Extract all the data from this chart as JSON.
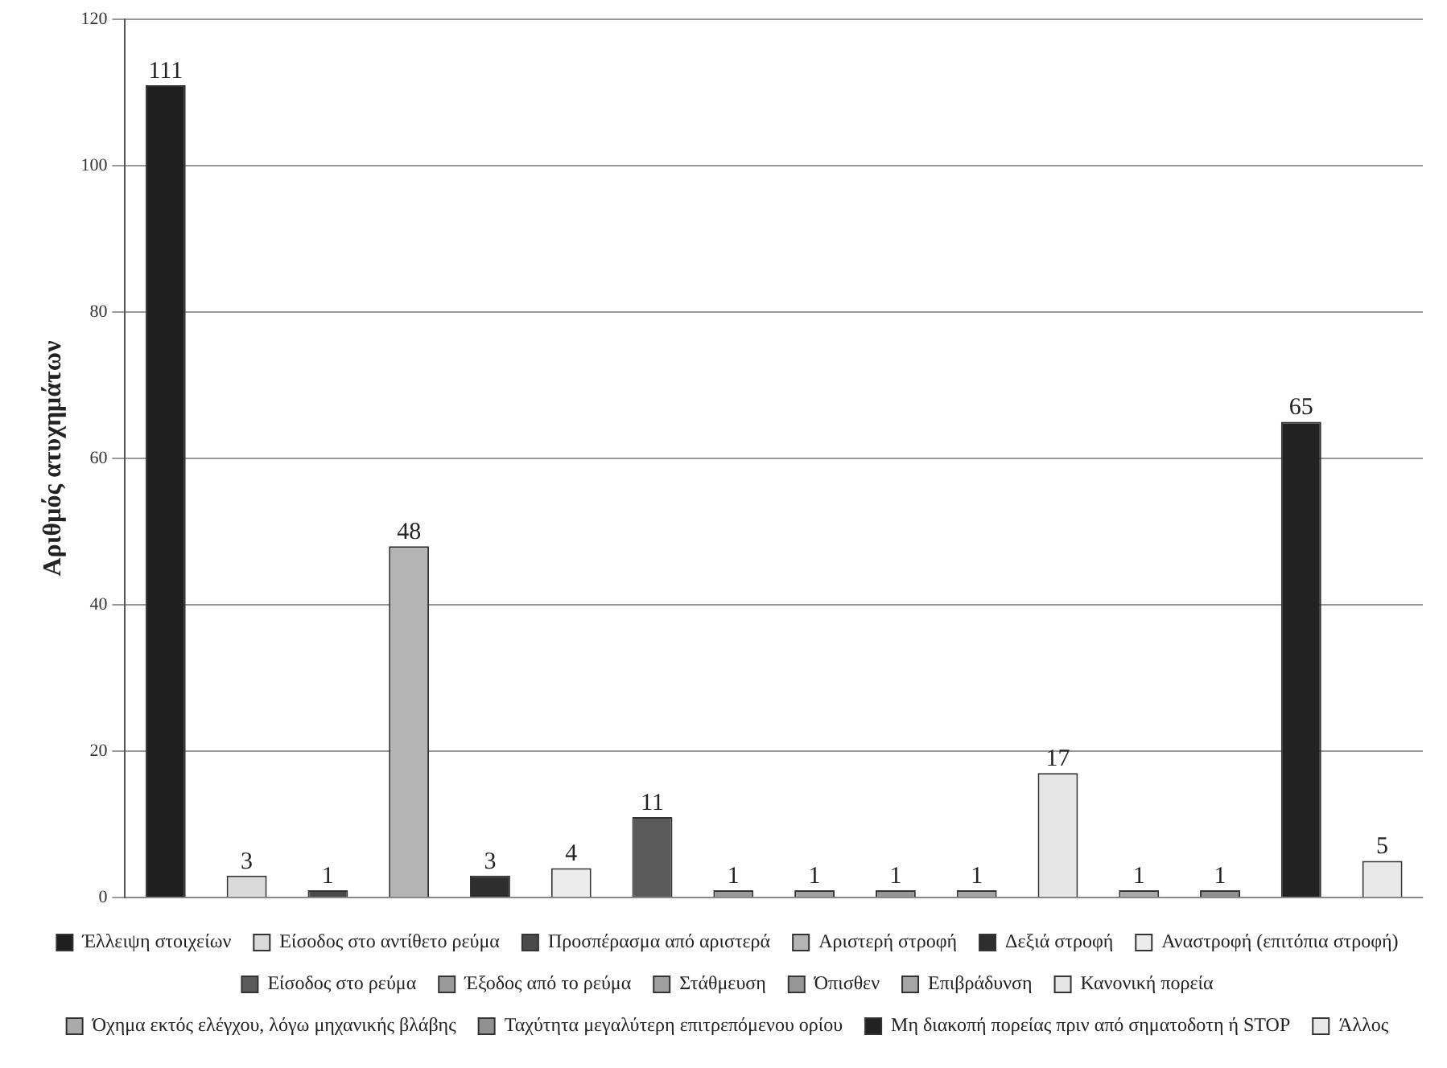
{
  "chart_data": {
    "type": "bar",
    "ylabel": "Αριθμός ατυχημάτων",
    "categories": [
      null,
      null,
      null,
      null,
      null,
      null,
      null,
      null,
      null,
      null,
      null,
      null,
      null,
      null,
      null,
      null
    ],
    "series": [
      {
        "name": "Έλλειψη στοιχείων",
        "color": "#1e1e1e",
        "values": [
          111,
          null,
          null,
          null,
          null,
          null,
          null,
          null,
          null,
          null,
          null,
          null,
          null,
          null,
          null,
          null
        ]
      },
      {
        "name": "Είσοδος στο αντίθετο ρεύμα",
        "color": "#dadada",
        "values": [
          null,
          3,
          null,
          null,
          null,
          null,
          null,
          null,
          null,
          null,
          null,
          null,
          null,
          null,
          null,
          null
        ]
      },
      {
        "name": "Προσπέρασμα από αριστερά",
        "color": "#4a4a4a",
        "values": [
          null,
          null,
          1,
          null,
          null,
          null,
          null,
          null,
          null,
          null,
          null,
          null,
          null,
          null,
          null,
          null
        ]
      },
      {
        "name": "Αριστερή στροφή",
        "color": "#b4b4b4",
        "values": [
          null,
          null,
          null,
          48,
          null,
          null,
          null,
          null,
          null,
          null,
          null,
          null,
          null,
          null,
          null,
          null
        ]
      },
      {
        "name": "Δεξιά στροφή",
        "color": "#2e2e2e",
        "values": [
          null,
          null,
          null,
          null,
          3,
          null,
          null,
          null,
          null,
          null,
          null,
          null,
          null,
          null,
          null,
          null
        ]
      },
      {
        "name": "Αναστροφή (επιτόπια στροφή)",
        "color": "#ececec",
        "values": [
          null,
          null,
          null,
          null,
          null,
          4,
          null,
          null,
          null,
          null,
          null,
          null,
          null,
          null,
          null,
          null
        ]
      },
      {
        "name": "Είσοδος στο ρεύμα",
        "color": "#5a5a5a",
        "values": [
          null,
          null,
          null,
          null,
          null,
          null,
          11,
          null,
          null,
          null,
          null,
          null,
          null,
          null,
          null,
          null
        ]
      },
      {
        "name": "Έξοδος από το ρεύμα",
        "color": "#9a9a9a",
        "values": [
          null,
          null,
          null,
          null,
          null,
          null,
          null,
          1,
          null,
          null,
          null,
          null,
          null,
          null,
          null,
          null
        ]
      },
      {
        "name": "Στάθμευση",
        "color": "#a0a0a0",
        "values": [
          null,
          null,
          null,
          null,
          null,
          null,
          null,
          null,
          1,
          null,
          null,
          null,
          null,
          null,
          null,
          null
        ]
      },
      {
        "name": "Όπισθεν",
        "color": "#969696",
        "values": [
          null,
          null,
          null,
          null,
          null,
          null,
          null,
          null,
          null,
          1,
          null,
          null,
          null,
          null,
          null,
          null
        ]
      },
      {
        "name": "Επιβράδυνση",
        "color": "#a5a5a5",
        "values": [
          null,
          null,
          null,
          null,
          null,
          null,
          null,
          null,
          null,
          null,
          1,
          null,
          null,
          null,
          null,
          null
        ]
      },
      {
        "name": "Κανονική πορεία",
        "color": "#e6e6e6",
        "values": [
          null,
          null,
          null,
          null,
          null,
          null,
          null,
          null,
          null,
          null,
          null,
          17,
          null,
          null,
          null,
          null
        ]
      },
      {
        "name": "Όχημα εκτός ελέγχου, λόγω μηχανικής βλάβης",
        "color": "#aaaaaa",
        "values": [
          null,
          null,
          null,
          null,
          null,
          null,
          null,
          null,
          null,
          null,
          null,
          null,
          1,
          null,
          null,
          null
        ]
      },
      {
        "name": "Ταχύτητα μεγαλύτερη επιτρεπόμενου ορίου",
        "color": "#919191",
        "values": [
          null,
          null,
          null,
          null,
          null,
          null,
          null,
          null,
          null,
          null,
          null,
          null,
          null,
          1,
          null,
          null
        ]
      },
      {
        "name": "Μη διακοπή πορείας πριν από σηματοδοτη ή STOP",
        "color": "#222222",
        "values": [
          null,
          null,
          null,
          null,
          null,
          null,
          null,
          null,
          null,
          null,
          null,
          null,
          null,
          null,
          65,
          null
        ]
      },
      {
        "name": "Άλλος",
        "color": "#e9e9e9",
        "values": [
          null,
          null,
          null,
          null,
          null,
          null,
          null,
          null,
          null,
          null,
          null,
          null,
          null,
          null,
          null,
          5
        ]
      }
    ],
    "ylim": [
      0,
      120
    ],
    "yticks": [
      0,
      20,
      40,
      60,
      80,
      100,
      120
    ],
    "grid": "y",
    "legend": "bottom",
    "tick_labels": "y",
    "data_labels": true
  }
}
